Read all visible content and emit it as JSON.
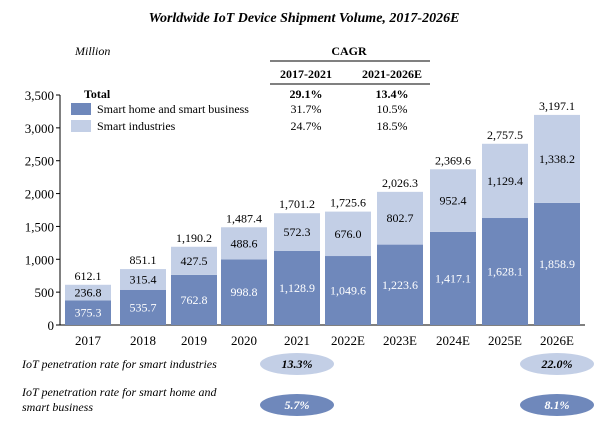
{
  "chart_data": {
    "type": "bar",
    "stacked": true,
    "title": "Worldwide IoT Device Shipment Volume, 2017-2026E",
    "unit": "Million",
    "categories": [
      "2017",
      "2018",
      "2019",
      "2020",
      "2021",
      "2022E",
      "2023E",
      "2024E",
      "2025E",
      "2026E"
    ],
    "series": [
      {
        "name": "Smart home and smart business",
        "color": "#6f88bb",
        "values": [
          375.3,
          535.7,
          762.8,
          998.8,
          1128.9,
          1049.6,
          1223.6,
          1417.1,
          1628.1,
          1858.9
        ],
        "labels": [
          "375.3",
          "535.7",
          "762.8",
          "998.8",
          "1,128.9",
          "1,049.6",
          "1,223.6",
          "1,417.1",
          "1,628.1",
          "1,858.9"
        ]
      },
      {
        "name": "Smart industries",
        "color": "#c3cfe6",
        "values": [
          236.8,
          315.4,
          427.5,
          488.6,
          572.3,
          676.0,
          802.7,
          952.4,
          1129.4,
          1338.2
        ],
        "labels": [
          "236.8",
          "315.4",
          "427.5",
          "488.6",
          "572.3",
          "676.0",
          "802.7",
          "952.4",
          "1,129.4",
          "1,338.2"
        ]
      }
    ],
    "totals": [
      612.1,
      851.1,
      1190.2,
      1487.4,
      1701.2,
      1725.6,
      2026.3,
      2369.6,
      2757.5,
      3197.1
    ],
    "total_labels": [
      "612.1",
      "851.1",
      "1,190.2",
      "1,487.4",
      "1,701.2",
      "1,725.6",
      "2,026.3",
      "2,369.6",
      "2,757.5",
      "3,197.1"
    ],
    "ylim": [
      0,
      3500
    ],
    "yticks": [
      0,
      500,
      1000,
      1500,
      2000,
      2500,
      3000,
      3500
    ],
    "ytick_labels": [
      "0",
      "500",
      "1,000",
      "1,500",
      "2,000",
      "2,500",
      "3,000",
      "3,500"
    ],
    "grid": false,
    "legend": {
      "title": "Total",
      "entries": [
        "Smart home and smart business",
        "Smart industries"
      ]
    },
    "cagr_table": {
      "title": "CAGR",
      "columns": [
        "2017-2021",
        "2021-2026E"
      ],
      "rows": [
        {
          "label": "Total",
          "values": [
            "29.1%",
            "13.4%"
          ]
        },
        {
          "label": "Smart home and smart business",
          "values": [
            "31.7%",
            "10.5%"
          ]
        },
        {
          "label": "Smart industries",
          "values": [
            "24.7%",
            "18.5%"
          ]
        }
      ]
    },
    "penetration": [
      {
        "label": "IoT penetration rate for smart industries",
        "values": [
          {
            "category": "2021",
            "value": "13.3%"
          },
          {
            "category": "2026E",
            "value": "22.0%"
          }
        ],
        "pill_color": "#c3cfe6",
        "text_color": "#000000"
      },
      {
        "label_lines": [
          "IoT penetration rate for smart home and",
          "smart business"
        ],
        "values": [
          {
            "category": "2021",
            "value": "5.7%"
          },
          {
            "category": "2026E",
            "value": "8.1%"
          }
        ],
        "pill_color": "#6f88bb",
        "text_color": "#ffffff"
      }
    ]
  }
}
